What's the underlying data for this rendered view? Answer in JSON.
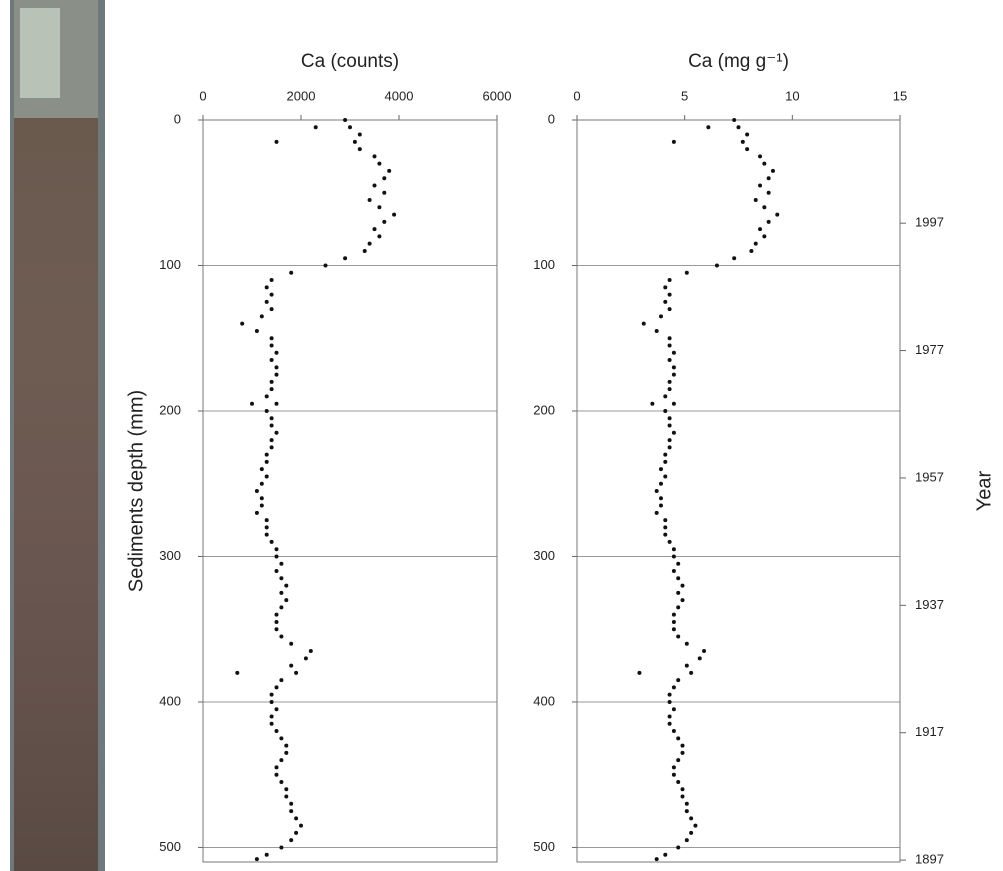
{
  "chart_data": [
    {
      "type": "scatter",
      "title": "Ca (counts)",
      "y_label": "Sediments depth (mm)",
      "xlim": [
        0,
        6000
      ],
      "xticks": [
        0,
        2000,
        4000,
        6000
      ],
      "ylim": [
        0,
        510
      ],
      "yticks": [
        0,
        100,
        200,
        300,
        400,
        500
      ],
      "y_inverted": true,
      "grid": true,
      "color": "#111111",
      "x": [
        2900,
        3000,
        3200,
        3100,
        3200,
        3500,
        3600,
        3800,
        3700,
        3500,
        3700,
        3400,
        3600,
        3900,
        3700,
        3500,
        3600,
        3400,
        3300,
        2900,
        2500,
        1800,
        1400,
        1300,
        1400,
        1300,
        1400,
        1200,
        800,
        1100,
        1400,
        1400,
        1500,
        1400,
        1500,
        1500,
        1400,
        1400,
        1300,
        1500,
        1300,
        1400,
        1400,
        1500,
        1400,
        1400,
        1300,
        1300,
        1200,
        1300,
        1200,
        1100,
        1200,
        1200,
        1100,
        1300,
        1300,
        1300,
        1400,
        1500,
        1500,
        1600,
        1500,
        1600,
        1700,
        1600,
        1700,
        1600,
        1500,
        1500,
        1500,
        1600,
        1800,
        2200,
        2100,
        1800,
        1900,
        1600,
        1500,
        1400,
        1400,
        1500,
        1400,
        1400,
        1500,
        1600,
        1700,
        1700,
        1600,
        1500,
        1500,
        1600,
        1700,
        1700,
        1800,
        1800,
        1900,
        2000,
        1900,
        1800,
        1600,
        1300,
        1100,
        2300,
        1500,
        700,
        1000
      ],
      "y": [
        0,
        5,
        10,
        15,
        20,
        25,
        30,
        35,
        40,
        45,
        50,
        55,
        60,
        65,
        70,
        75,
        80,
        85,
        90,
        95,
        100,
        105,
        110,
        115,
        120,
        125,
        130,
        135,
        140,
        145,
        150,
        155,
        160,
        165,
        170,
        175,
        180,
        185,
        190,
        195,
        200,
        205,
        210,
        215,
        220,
        225,
        230,
        235,
        240,
        245,
        250,
        255,
        260,
        265,
        270,
        275,
        280,
        285,
        290,
        295,
        300,
        305,
        310,
        315,
        320,
        325,
        330,
        335,
        340,
        345,
        350,
        355,
        360,
        365,
        370,
        375,
        380,
        385,
        390,
        395,
        400,
        405,
        410,
        415,
        420,
        425,
        430,
        435,
        440,
        445,
        450,
        455,
        460,
        465,
        470,
        475,
        480,
        485,
        490,
        495,
        500,
        505,
        508,
        5,
        15,
        380,
        195
      ]
    },
    {
      "type": "scatter",
      "title": "Ca (mg g⁻¹)",
      "y2_label": "Year",
      "xlim": [
        0,
        15
      ],
      "xticks": [
        0,
        5,
        10,
        15
      ],
      "ylim": [
        0,
        510
      ],
      "yticks": [
        0,
        100,
        200,
        300,
        400,
        500
      ],
      "y_inverted": true,
      "grid": true,
      "color": "#111111",
      "y2lim": [
        2013.2,
        1896.7
      ],
      "y2ticks": [
        1997,
        1977,
        1957,
        1937,
        1917,
        1897
      ],
      "x": [
        7.3,
        7.5,
        7.9,
        7.7,
        7.9,
        8.5,
        8.7,
        9.1,
        8.9,
        8.5,
        8.9,
        8.3,
        8.7,
        9.3,
        8.9,
        8.5,
        8.7,
        8.3,
        8.1,
        7.3,
        6.5,
        5.1,
        4.3,
        4.1,
        4.3,
        4.1,
        4.3,
        3.9,
        3.1,
        3.7,
        4.3,
        4.3,
        4.5,
        4.3,
        4.5,
        4.5,
        4.3,
        4.3,
        4.1,
        4.5,
        4.1,
        4.3,
        4.3,
        4.5,
        4.3,
        4.3,
        4.1,
        4.1,
        3.9,
        4.1,
        3.9,
        3.7,
        3.9,
        3.9,
        3.7,
        4.1,
        4.1,
        4.1,
        4.3,
        4.5,
        4.5,
        4.7,
        4.5,
        4.7,
        4.9,
        4.7,
        4.9,
        4.7,
        4.5,
        4.5,
        4.5,
        4.7,
        5.1,
        5.9,
        5.7,
        5.1,
        5.3,
        4.7,
        4.5,
        4.3,
        4.3,
        4.5,
        4.3,
        4.3,
        4.5,
        4.7,
        4.9,
        4.9,
        4.7,
        4.5,
        4.5,
        4.7,
        4.9,
        4.9,
        5.1,
        5.1,
        5.3,
        5.5,
        5.3,
        5.1,
        4.7,
        4.1,
        3.7,
        6.1,
        4.5,
        2.9,
        3.5
      ],
      "y": [
        0,
        5,
        10,
        15,
        20,
        25,
        30,
        35,
        40,
        45,
        50,
        55,
        60,
        65,
        70,
        75,
        80,
        85,
        90,
        95,
        100,
        105,
        110,
        115,
        120,
        125,
        130,
        135,
        140,
        145,
        150,
        155,
        160,
        165,
        170,
        175,
        180,
        185,
        190,
        195,
        200,
        205,
        210,
        215,
        220,
        225,
        230,
        235,
        240,
        245,
        250,
        255,
        260,
        265,
        270,
        275,
        280,
        285,
        290,
        295,
        300,
        305,
        310,
        315,
        320,
        325,
        330,
        335,
        340,
        345,
        350,
        355,
        360,
        365,
        370,
        375,
        380,
        385,
        390,
        395,
        400,
        405,
        410,
        415,
        420,
        425,
        430,
        435,
        440,
        445,
        450,
        455,
        460,
        465,
        470,
        475,
        480,
        485,
        490,
        495,
        500,
        505,
        508,
        5,
        15,
        380,
        195
      ]
    }
  ]
}
